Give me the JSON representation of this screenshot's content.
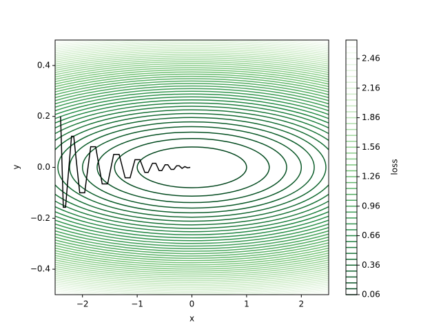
{
  "chart_data": {
    "type": "contour",
    "x_label": "x",
    "y_label": "y",
    "colorbar_label": "loss",
    "xlim": [
      -2.5,
      2.5
    ],
    "ylim": [
      -0.5,
      0.5
    ],
    "xticks": [
      {
        "value": -2,
        "label": "−2"
      },
      {
        "value": -1,
        "label": "−1"
      },
      0,
      1,
      2
    ],
    "yticks": [
      {
        "value": -0.4,
        "label": "−0.4"
      },
      {
        "value": -0.2,
        "label": "−0.2"
      },
      {
        "value": 0,
        "label": "0.0"
      },
      {
        "value": 0.2,
        "label": "0.2"
      },
      {
        "value": 0.4,
        "label": "0.4"
      }
    ],
    "levels": [
      0.06,
      0.12,
      0.18,
      0.24,
      0.3,
      0.36,
      0.42,
      0.48,
      0.54,
      0.6,
      0.66,
      0.72,
      0.78,
      0.84,
      0.9,
      0.96,
      1.02,
      1.08,
      1.14,
      1.2,
      1.26,
      1.32,
      1.38,
      1.44,
      1.5,
      1.56,
      1.62,
      1.68,
      1.74,
      1.8,
      1.86,
      1.92,
      1.98,
      2.04,
      2.1,
      2.16,
      2.22,
      2.28,
      2.34,
      2.4,
      2.46,
      2.52,
      2.58,
      2.64
    ],
    "clim": [
      0.06,
      2.65
    ],
    "cticks": [
      0.06,
      0.36,
      0.66,
      0.96,
      1.26,
      1.56,
      1.86,
      2.16,
      2.46
    ],
    "colormap": [
      "#00441b",
      "#238b45",
      "#74c476",
      "#c7e9c0",
      "#f7fcf5"
    ],
    "path": {
      "color": "#000000",
      "x": [
        -2.4,
        -2.35,
        -2.31,
        -2.2,
        -2.16,
        -2.05,
        -1.96,
        -1.85,
        -1.76,
        -1.64,
        -1.54,
        -1.43,
        -1.33,
        -1.22,
        -1.13,
        -1.04,
        -0.95,
        -0.86,
        -0.8,
        -0.72,
        -0.66,
        -0.6,
        -0.55,
        -0.49,
        -0.44,
        -0.38,
        -0.33,
        -0.28,
        -0.23,
        -0.18,
        -0.13,
        -0.08,
        -0.03
      ],
      "y": [
        0.2,
        -0.157,
        -0.157,
        0.122,
        0.122,
        -0.1,
        -0.1,
        0.081,
        0.081,
        -0.065,
        -0.065,
        0.051,
        0.051,
        -0.041,
        -0.041,
        0.03,
        0.03,
        -0.02,
        -0.02,
        0.016,
        0.016,
        -0.013,
        -0.013,
        0.01,
        0.01,
        -0.008,
        -0.008,
        0.006,
        0.006,
        -0.004,
        0.003,
        -0.002,
        0.0
      ]
    }
  }
}
